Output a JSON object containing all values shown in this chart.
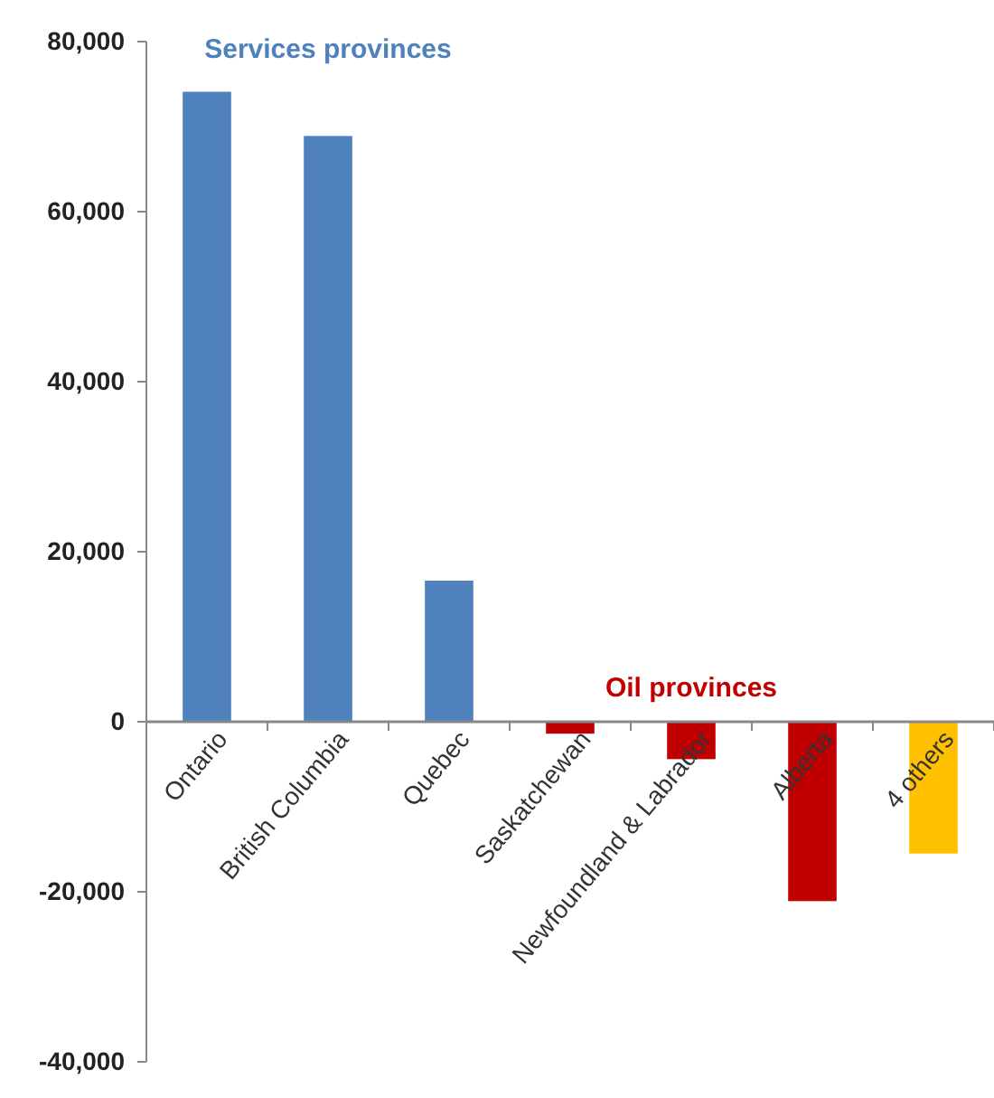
{
  "chart_data": {
    "type": "bar",
    "categories": [
      "Ontario",
      "British Columbia",
      "Quebec",
      "Saskatchewan",
      "Newfoundland & Labrador",
      "Alberta",
      "4 others"
    ],
    "values": [
      74100,
      68900,
      16600,
      -1400,
      -4400,
      -21100,
      -15500
    ],
    "colors": [
      "#4f81bd",
      "#4f81bd",
      "#4f81bd",
      "#c00000",
      "#c00000",
      "#c00000",
      "#ffc000"
    ],
    "ylim": [
      -40000,
      80000
    ],
    "yticks": [
      {
        "value": -40000,
        "label": "-40,000"
      },
      {
        "value": -20000,
        "label": "-20,000"
      },
      0,
      {
        "value": 20000,
        "label": "20,000"
      },
      {
        "value": 40000,
        "label": "40,000"
      },
      {
        "value": 60000,
        "label": "60,000"
      },
      {
        "value": 80000,
        "label": "80,000"
      }
    ],
    "annotations": [
      "Services provinces",
      "Oil provinces"
    ]
  }
}
